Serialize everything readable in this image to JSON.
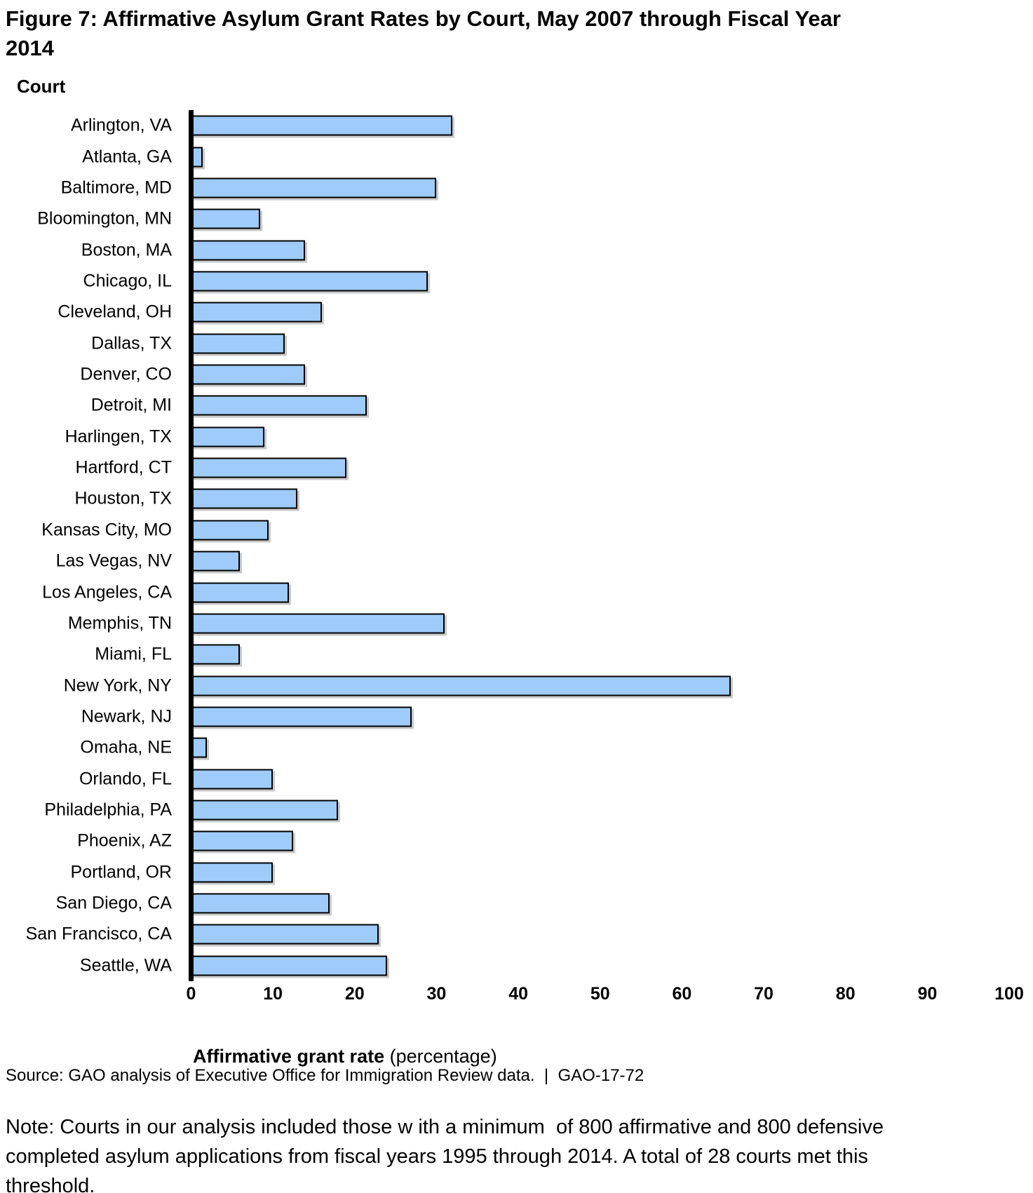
{
  "figure": {
    "title_lines": [
      "Figure 7: Affirmative Asylum Grant Rates by Court, May 2007 through Fiscal Year",
      "2014"
    ]
  },
  "chart": {
    "y_axis_title": "Court",
    "x_axis_title_bold": "Affirmative grant rate",
    "x_axis_title_regular": " (percentage)",
    "bar_fill_color": "#9ECBFA",
    "bar_border_color": "#000000",
    "axis_color": "#000000"
  },
  "chart_data": {
    "type": "bar",
    "orientation": "horizontal",
    "title": "Figure 7: Affirmative Asylum Grant Rates by Court, May 2007 through Fiscal Year 2014",
    "xlabel": "Affirmative grant rate (percentage)",
    "ylabel": "Court",
    "xlim": [
      0,
      100
    ],
    "x_ticks": [
      0,
      10,
      20,
      30,
      40,
      50,
      60,
      70,
      80,
      90,
      100
    ],
    "grid": false,
    "legend": false,
    "categories": [
      "Arlington, VA",
      "Atlanta, GA",
      "Baltimore, MD",
      "Bloomington, MN",
      "Boston, MA",
      "Chicago, IL",
      "Cleveland, OH",
      "Dallas, TX",
      "Denver, CO",
      "Detroit, MI",
      "Harlingen, TX",
      "Hartford, CT",
      "Houston, TX",
      "Kansas City, MO",
      "Las Vegas, NV",
      "Los Angeles, CA",
      "Memphis, TN",
      "Miami, FL",
      "New York, NY",
      "Newark, NJ",
      "Omaha, NE",
      "Orlando, FL",
      "Philadelphia, PA",
      "Phoenix, AZ",
      "Portland, OR",
      "San Diego, CA",
      "San Francisco, CA",
      "Seattle, WA"
    ],
    "values": [
      32,
      1.5,
      30,
      8.5,
      14,
      29,
      16,
      11.5,
      14,
      21.5,
      9,
      19,
      13,
      9.5,
      6,
      12,
      31,
      6,
      66,
      27,
      2,
      10,
      18,
      12.5,
      10,
      17,
      23,
      24
    ]
  },
  "footer": {
    "source": "Source: GAO analysis of Executive Office for Immigration Review data.  |  GAO-17-72",
    "note_lines": [
      "Note: Courts in our analysis included those w ith a minimum  of 800 affirmative and 800 defensive",
      "completed asylum applications from fiscal years 1995 through 2014. A total of 28 courts met this",
      "threshold."
    ]
  }
}
